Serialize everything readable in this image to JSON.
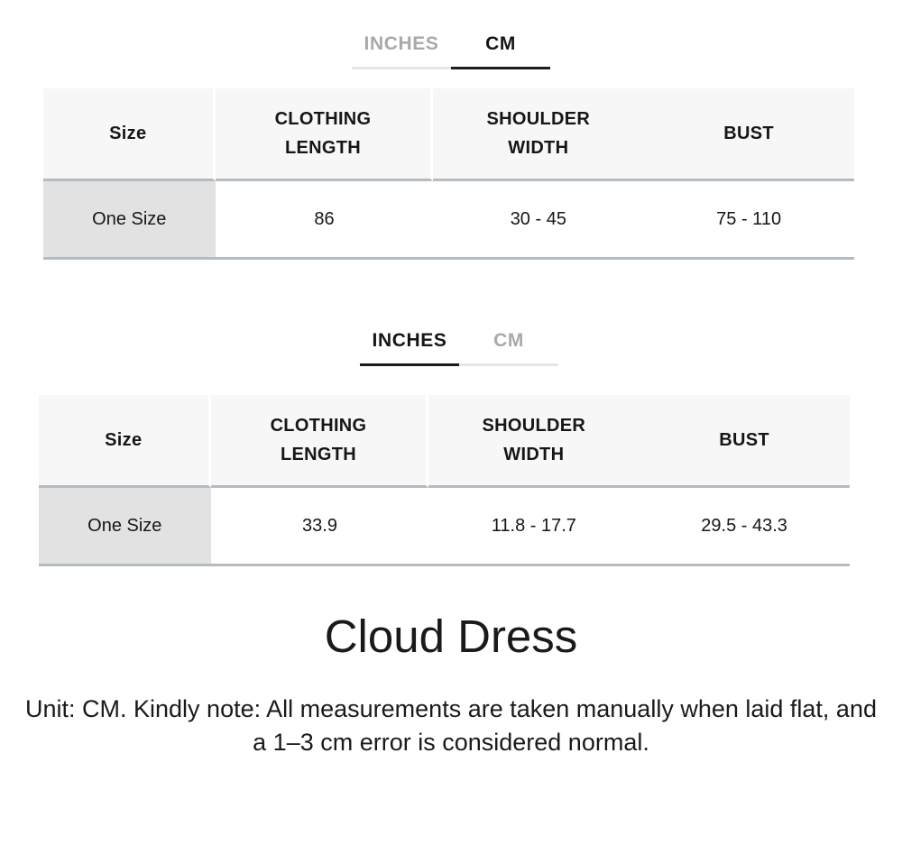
{
  "unit_tabs": {
    "inches_label": "INCHES",
    "cm_label": "CM"
  },
  "cm_chart": {
    "active_unit": "CM",
    "columns": [
      "Size",
      "CLOTHING LENGTH",
      "SHOULDER WIDTH",
      "BUST"
    ],
    "rows": [
      [
        "One Size",
        "86",
        "30 - 45",
        "75 - 110"
      ]
    ]
  },
  "inches_chart": {
    "active_unit": "INCHES",
    "columns": [
      "Size",
      "CLOTHING LENGTH",
      "SHOULDER WIDTH",
      "BUST"
    ],
    "rows": [
      [
        "One Size",
        "33.9",
        "11.8 - 17.7",
        "29.5 - 43.3"
      ]
    ]
  },
  "product": {
    "title": "Cloud Dress"
  },
  "note": "Unit: CM. Kindly note: All measurements are taken manually when laid flat, and a 1–3 cm error is considered normal.",
  "colors": {
    "active_tab_text": "#161616",
    "inactive_tab_text": "#a9a9a9",
    "active_tab_underline": "#1c1c1c",
    "inactive_tab_underline": "#e6e6e6",
    "table_header_bg": "#f7f7f7",
    "size_cell_bg": "#e2e2e2",
    "table_rule": "#b5bcc1"
  }
}
